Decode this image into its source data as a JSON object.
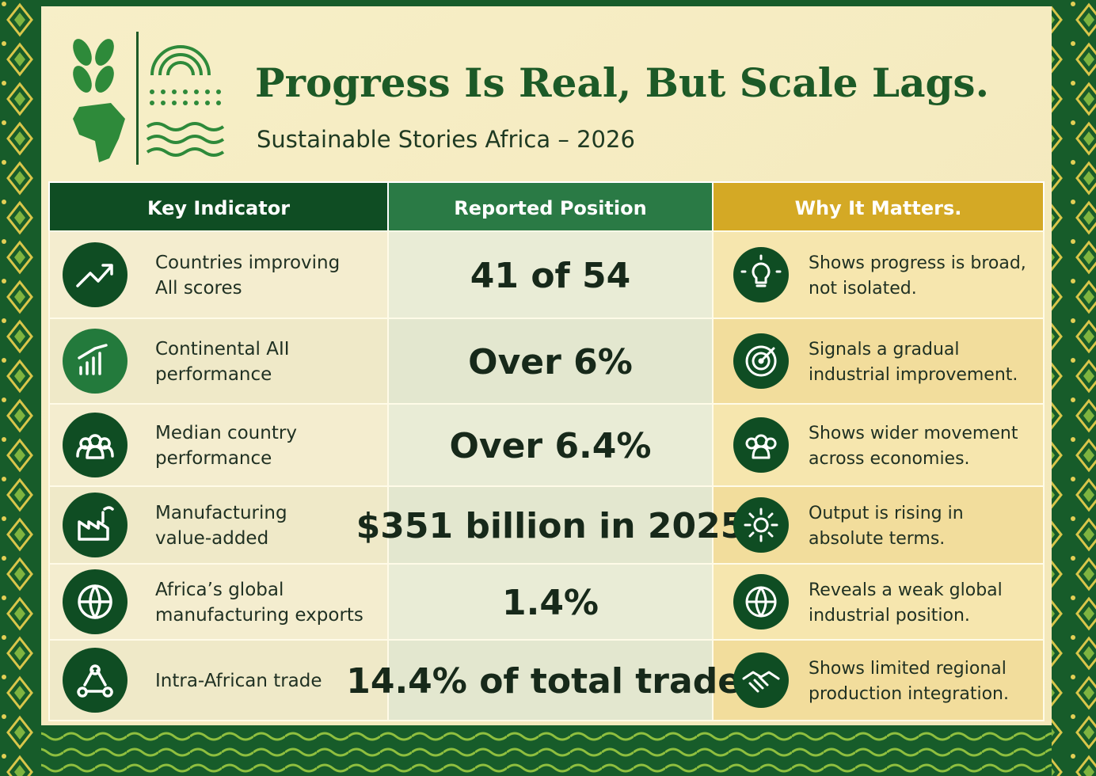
{
  "header": {
    "title": "Progress Is Real, But Scale Lags.",
    "subtitle": "Sustainable Stories Africa – 2026"
  },
  "table": {
    "columns": [
      "Key Indicator",
      "Reported Position",
      "Why It Matters."
    ],
    "rows": [
      [
        "Countries improving All scores",
        "41 of 54",
        "Shows progress is broad, not isolated."
      ],
      [
        "Continental AII performance",
        "Over 6%",
        "Signals a gradual industrial improvement."
      ],
      [
        "Median country performance",
        "Over 6.4%",
        "Shows wider movement across economies."
      ],
      [
        "Manufacturing value-added",
        "$351 billion in 2025",
        "Output is rising in absolute terms."
      ],
      [
        "Africa’s global manufacturing exports",
        "1.4%",
        "Reveals a weak global industrial position."
      ],
      [
        "Intra-African trade",
        "14.4% of total trade.",
        "Shows limited regional production integration."
      ]
    ]
  }
}
